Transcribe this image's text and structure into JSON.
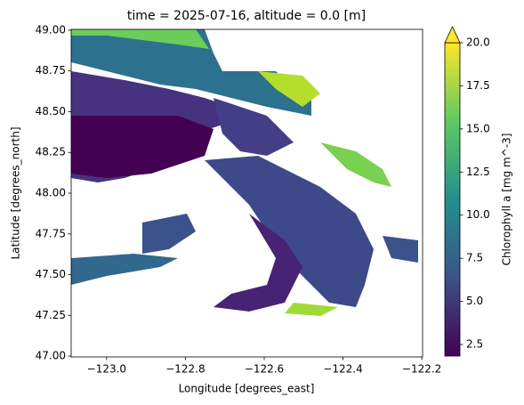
{
  "chart_data": {
    "type": "raster",
    "title": "time = 2025-07-16, altitude = 0.0 [m]",
    "x_label": "Longitude [degrees_east]",
    "y_label": "Latitude [degrees_north]",
    "xlim": [
      -123.09,
      -122.198
    ],
    "ylim": [
      46.995,
      49.005
    ],
    "xticks": [
      {
        "value": -123.0,
        "label": "−123.0"
      },
      {
        "value": -122.8,
        "label": "−122.8"
      },
      {
        "value": -122.6,
        "label": "−122.6"
      },
      {
        "value": -122.4,
        "label": "−122.4"
      },
      {
        "value": -122.2,
        "label": "−122.2"
      }
    ],
    "yticks": [
      {
        "value": 47.0,
        "label": "47.00"
      },
      {
        "value": 47.25,
        "label": "47.25"
      },
      {
        "value": 47.5,
        "label": "47.50"
      },
      {
        "value": 47.75,
        "label": "47.75"
      },
      {
        "value": 48.0,
        "label": "48.00"
      },
      {
        "value": 48.25,
        "label": "48.25"
      },
      {
        "value": 48.5,
        "label": "48.50"
      },
      {
        "value": 48.75,
        "label": "48.75"
      },
      {
        "value": 49.0,
        "label": "49.00"
      }
    ],
    "colorbar": {
      "label": "Chlorophyll a [mg m^-3]",
      "lim": [
        1.83,
        20.0
      ],
      "ticks": [
        2.5,
        {
          "value": 5.0,
          "label": "5.0"
        },
        7.5,
        {
          "value": 10.0,
          "label": "10.0"
        },
        12.5,
        {
          "value": 15.0,
          "label": "15.0"
        },
        17.5,
        {
          "value": 20.0,
          "label": "20.0"
        }
      ]
    }
  }
}
